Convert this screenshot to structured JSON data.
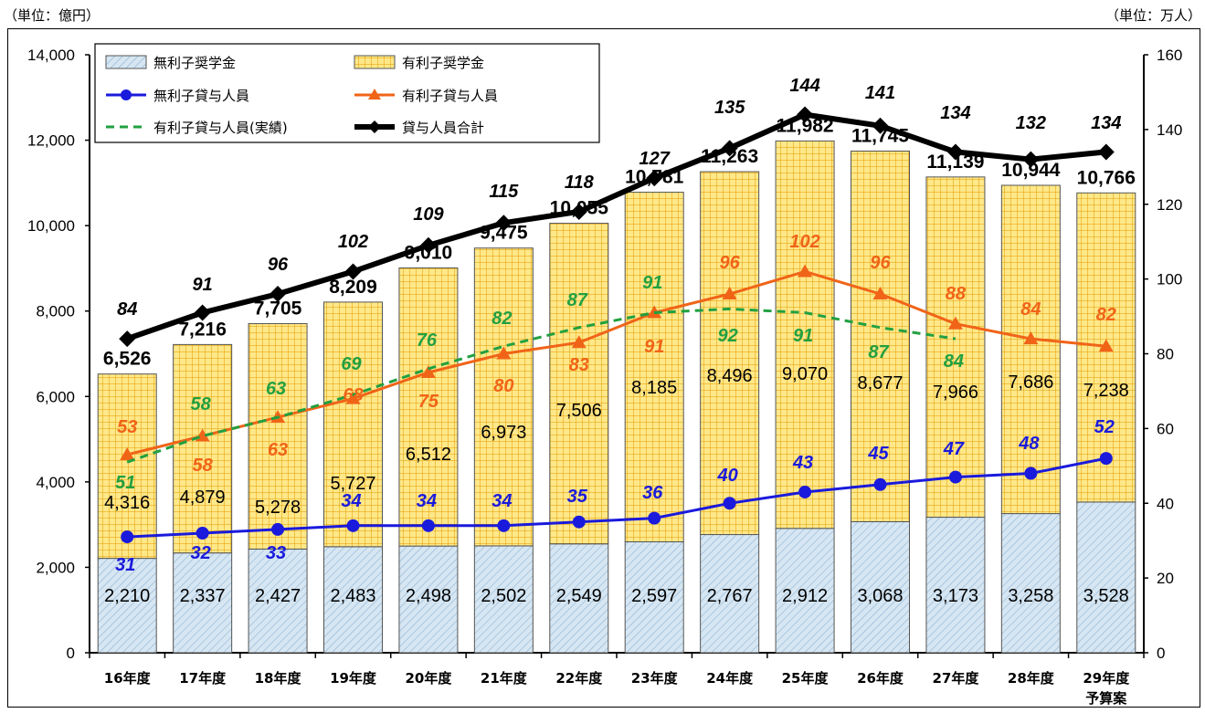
{
  "units": {
    "left": "（単位：億円）",
    "right": "（単位：万人）"
  },
  "chart_data": {
    "type": "bar+line",
    "categories": [
      "16年度",
      "17年度",
      "18年度",
      "19年度",
      "20年度",
      "21年度",
      "22年度",
      "23年度",
      "24年度",
      "25年度",
      "26年度",
      "27年度",
      "28年度",
      "29年度\n予算案"
    ],
    "y_left": {
      "min": 0,
      "max": 14000,
      "ticks": [
        0,
        2000,
        4000,
        6000,
        8000,
        10000,
        12000,
        14000
      ],
      "tick_labels": [
        "0",
        "2,000",
        "4,000",
        "6,000",
        "8,000",
        "10,000",
        "12,000",
        "14,000"
      ]
    },
    "y_right": {
      "min": 0,
      "max": 160,
      "ticks": [
        0,
        20,
        40,
        60,
        80,
        100,
        120,
        140,
        160
      ]
    },
    "bar_series": [
      {
        "name": "無利子奨学金",
        "values": [
          2210,
          2337,
          2427,
          2483,
          2498,
          2502,
          2549,
          2597,
          2767,
          2912,
          3068,
          3173,
          3258,
          3528
        ],
        "labels": [
          "2,210",
          "2,337",
          "2,427",
          "2,483",
          "2,498",
          "2,502",
          "2,549",
          "2,597",
          "2,767",
          "2,912",
          "3,068",
          "3,173",
          "3,258",
          "3,528"
        ]
      },
      {
        "name": "有利子奨学金",
        "values": [
          4316,
          4879,
          5278,
          5727,
          6512,
          6973,
          7506,
          8185,
          8496,
          9070,
          8677,
          7966,
          7686,
          7238
        ],
        "labels": [
          "4,316",
          "4,879",
          "5,278",
          "5,727",
          "6,512",
          "6,973",
          "7,506",
          "8,185",
          "8,496",
          "9,070",
          "8,677",
          "7,966",
          "7,686",
          "7,238"
        ]
      }
    ],
    "totals": {
      "values": [
        6526,
        7216,
        7705,
        8209,
        9010,
        9475,
        10055,
        10781,
        11263,
        11982,
        11745,
        11139,
        10944,
        10766
      ],
      "labels": [
        "6,526",
        "7,216",
        "7,705",
        "8,209",
        "9,010",
        "9,475",
        "10,055",
        "10,781",
        "11,263",
        "11,982",
        "11,745",
        "11,139",
        "10,944",
        "10,766"
      ]
    },
    "line_series": [
      {
        "name": "無利子貸与人員",
        "color": "#1a1adc",
        "marker": "circle",
        "values": [
          31,
          32,
          33,
          34,
          34,
          34,
          35,
          36,
          40,
          43,
          45,
          47,
          48,
          52
        ]
      },
      {
        "name": "有利子貸与人員",
        "color": "#f06418",
        "marker": "triangle",
        "values": [
          53,
          58,
          63,
          68,
          75,
          80,
          83,
          91,
          96,
          102,
          96,
          88,
          84,
          82
        ]
      },
      {
        "name": "有利子貸与人員(実績)",
        "color": "#22a040",
        "marker": "dash",
        "values": [
          51,
          58,
          63,
          69,
          76,
          82,
          87,
          91,
          92,
          91,
          87,
          84,
          null,
          null
        ]
      },
      {
        "name": "貸与人員合計",
        "color": "#000000",
        "marker": "diamond",
        "values": [
          84,
          91,
          96,
          102,
          109,
          115,
          118,
          127,
          135,
          144,
          141,
          134,
          132,
          134
        ]
      }
    ],
    "colors": {
      "bar_interest_free": "#d6e6f2",
      "bar_interest_bearing": "#ffe07a",
      "grid_interest_bearing": "#e8a800"
    }
  }
}
